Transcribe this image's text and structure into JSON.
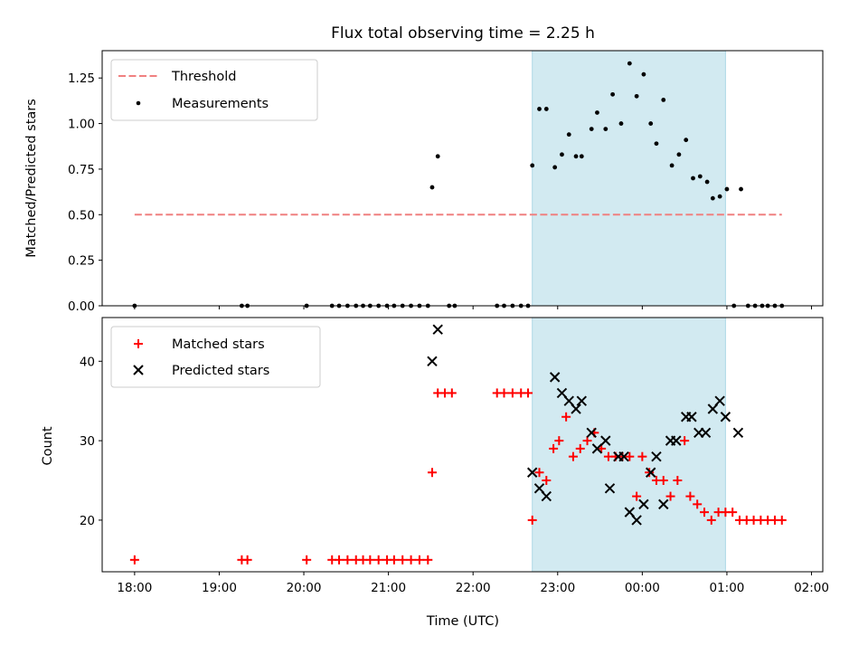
{
  "chart_data": [
    {
      "type": "scatter",
      "title": "Flux total observing time = 2.25 h",
      "xlabel": "",
      "ylabel": "Matched/Predicted stars",
      "ylim": [
        0,
        1.4
      ],
      "yticks": [
        "0.00",
        "0.25",
        "0.50",
        "0.75",
        "1.00",
        "1.25"
      ],
      "xlim": [
        "17:37",
        "02:08"
      ],
      "shaded_region": [
        "22:42",
        "00:59"
      ],
      "legend_position": "top-left",
      "threshold": {
        "name": "Threshold",
        "y": 0.5,
        "x_start": "18:00",
        "x_end": "01:39",
        "color": "#f08080",
        "style": "dashed"
      },
      "series": [
        {
          "name": "Measurements",
          "color": "#000000",
          "marker": "dot",
          "points": [
            [
              "18:00",
              0
            ],
            [
              "19:16",
              0
            ],
            [
              "19:20",
              0
            ],
            [
              "20:02",
              0
            ],
            [
              "20:20",
              0
            ],
            [
              "20:25",
              0
            ],
            [
              "20:31",
              0
            ],
            [
              "20:37",
              0
            ],
            [
              "20:42",
              0
            ],
            [
              "20:47",
              0
            ],
            [
              "20:53",
              0
            ],
            [
              "20:59",
              0
            ],
            [
              "21:04",
              0
            ],
            [
              "21:10",
              0
            ],
            [
              "21:16",
              0
            ],
            [
              "21:22",
              0
            ],
            [
              "21:28",
              0
            ],
            [
              "21:31",
              0.65
            ],
            [
              "21:35",
              0.82
            ],
            [
              "21:43",
              0
            ],
            [
              "21:47",
              0
            ],
            [
              "22:17",
              0
            ],
            [
              "22:22",
              0
            ],
            [
              "22:28",
              0
            ],
            [
              "22:34",
              0
            ],
            [
              "22:39",
              0
            ],
            [
              "22:42",
              0.77
            ],
            [
              "22:47",
              1.08
            ],
            [
              "22:52",
              1.08
            ],
            [
              "22:58",
              0.76
            ],
            [
              "23:03",
              0.83
            ],
            [
              "23:08",
              0.94
            ],
            [
              "23:13",
              0.82
            ],
            [
              "23:17",
              0.82
            ],
            [
              "23:24",
              0.97
            ],
            [
              "23:28",
              1.06
            ],
            [
              "23:34",
              0.97
            ],
            [
              "23:39",
              1.16
            ],
            [
              "23:45",
              1.0
            ],
            [
              "23:51",
              1.33
            ],
            [
              "23:56",
              1.15
            ],
            [
              "00:01",
              1.27
            ],
            [
              "00:06",
              1.0
            ],
            [
              "00:10",
              0.89
            ],
            [
              "00:15",
              1.13
            ],
            [
              "00:21",
              0.77
            ],
            [
              "00:26",
              0.83
            ],
            [
              "00:31",
              0.91
            ],
            [
              "00:36",
              0.7
            ],
            [
              "00:41",
              0.71
            ],
            [
              "00:46",
              0.68
            ],
            [
              "00:50",
              0.59
            ],
            [
              "00:55",
              0.6
            ],
            [
              "01:00",
              0.64
            ],
            [
              "01:05",
              0
            ],
            [
              "01:10",
              0.64
            ],
            [
              "01:15",
              0
            ],
            [
              "01:20",
              0
            ],
            [
              "01:25",
              0
            ],
            [
              "01:29",
              0
            ],
            [
              "01:34",
              0
            ],
            [
              "01:39",
              0
            ]
          ]
        }
      ]
    },
    {
      "type": "scatter",
      "title": "",
      "xlabel": "Time (UTC)",
      "ylabel": "Count",
      "ylim": [
        13.5,
        45.5
      ],
      "yticks": [
        "20",
        "30",
        "40"
      ],
      "xlim": [
        "17:37",
        "02:08"
      ],
      "xticks": [
        "18:00",
        "19:00",
        "20:00",
        "21:00",
        "22:00",
        "23:00",
        "00:00",
        "01:00",
        "02:00"
      ],
      "shaded_region": [
        "22:42",
        "00:59"
      ],
      "legend_position": "top-left",
      "series": [
        {
          "name": "Matched stars",
          "color": "#ff0000",
          "marker": "plus",
          "points": [
            [
              "18:00",
              15
            ],
            [
              "19:16",
              15
            ],
            [
              "19:20",
              15
            ],
            [
              "20:02",
              15
            ],
            [
              "20:20",
              15
            ],
            [
              "20:25",
              15
            ],
            [
              "20:31",
              15
            ],
            [
              "20:37",
              15
            ],
            [
              "20:42",
              15
            ],
            [
              "20:47",
              15
            ],
            [
              "20:53",
              15
            ],
            [
              "20:59",
              15
            ],
            [
              "21:04",
              15
            ],
            [
              "21:10",
              15
            ],
            [
              "21:16",
              15
            ],
            [
              "21:22",
              15
            ],
            [
              "21:28",
              15
            ],
            [
              "21:31",
              26
            ],
            [
              "21:35",
              36
            ],
            [
              "21:40",
              36
            ],
            [
              "21:45",
              36
            ],
            [
              "22:17",
              36
            ],
            [
              "22:22",
              36
            ],
            [
              "22:28",
              36
            ],
            [
              "22:34",
              36
            ],
            [
              "22:39",
              36
            ],
            [
              "22:42",
              20
            ],
            [
              "22:47",
              26
            ],
            [
              "22:52",
              25
            ],
            [
              "22:57",
              29
            ],
            [
              "23:01",
              30
            ],
            [
              "23:06",
              33
            ],
            [
              "23:11",
              28
            ],
            [
              "23:16",
              29
            ],
            [
              "23:21",
              30
            ],
            [
              "23:26",
              31
            ],
            [
              "23:31",
              29
            ],
            [
              "23:36",
              28
            ],
            [
              "23:41",
              28
            ],
            [
              "23:46",
              28
            ],
            [
              "23:51",
              28
            ],
            [
              "23:56",
              23
            ],
            [
              "00:00",
              28
            ],
            [
              "00:05",
              26
            ],
            [
              "00:10",
              25
            ],
            [
              "00:15",
              25
            ],
            [
              "00:20",
              23
            ],
            [
              "00:25",
              25
            ],
            [
              "00:30",
              30
            ],
            [
              "00:34",
              23
            ],
            [
              "00:39",
              22
            ],
            [
              "00:44",
              21
            ],
            [
              "00:49",
              20
            ],
            [
              "00:54",
              21
            ],
            [
              "00:59",
              21
            ],
            [
              "01:04",
              21
            ],
            [
              "01:09",
              20
            ],
            [
              "01:14",
              20
            ],
            [
              "01:19",
              20
            ],
            [
              "01:24",
              20
            ],
            [
              "01:29",
              20
            ],
            [
              "01:34",
              20
            ],
            [
              "01:39",
              20
            ]
          ]
        },
        {
          "name": "Predicted stars",
          "color": "#000000",
          "marker": "x",
          "points": [
            [
              "21:31",
              40
            ],
            [
              "21:35",
              44
            ],
            [
              "22:42",
              26
            ],
            [
              "22:47",
              24
            ],
            [
              "22:52",
              23
            ],
            [
              "22:58",
              38
            ],
            [
              "23:03",
              36
            ],
            [
              "23:08",
              35
            ],
            [
              "23:13",
              34
            ],
            [
              "23:17",
              35
            ],
            [
              "23:24",
              31
            ],
            [
              "23:28",
              29
            ],
            [
              "23:34",
              30
            ],
            [
              "23:37",
              24
            ],
            [
              "23:43",
              28
            ],
            [
              "23:47",
              28
            ],
            [
              "23:51",
              21
            ],
            [
              "23:56",
              20
            ],
            [
              "00:01",
              22
            ],
            [
              "00:06",
              26
            ],
            [
              "00:10",
              28
            ],
            [
              "00:15",
              22
            ],
            [
              "00:20",
              30
            ],
            [
              "00:24",
              30
            ],
            [
              "00:31",
              33
            ],
            [
              "00:35",
              33
            ],
            [
              "00:40",
              31
            ],
            [
              "00:45",
              31
            ],
            [
              "00:50",
              34
            ],
            [
              "00:55",
              35
            ],
            [
              "00:59",
              33
            ],
            [
              "01:08",
              31
            ]
          ]
        }
      ]
    }
  ],
  "shade_color": "#add8e6"
}
